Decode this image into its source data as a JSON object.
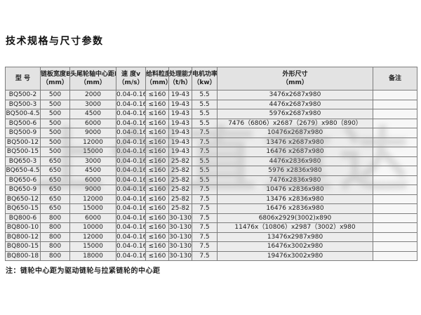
{
  "page": {
    "title": "技术规格与尺寸参数",
    "note": "注：链轮中心距为驱动链轮与拉紧链轮的中心距"
  },
  "watermark": {
    "glyphs": [
      "上",
      "创",
      "直",
      "重",
      "达"
    ]
  },
  "colors": {
    "cell_bg": "#ececec",
    "header_bg": "#e3e3e3",
    "border": "#7d7d7d",
    "page_bg": "#ffffff"
  },
  "table": {
    "column_keys": [
      "model",
      "plate-width",
      "center-distance",
      "speed",
      "feed-size",
      "capacity",
      "motor-power",
      "dimensions",
      "remark"
    ],
    "headers": [
      {
        "l1": "型 号",
        "l2": ""
      },
      {
        "l1": "链板宽度B",
        "l2": "（mm）"
      },
      {
        "l1": "头尾轮轴中心距L",
        "l2": "（mm）"
      },
      {
        "l1": "速 度v",
        "l2": "（m/s）"
      },
      {
        "l1": "给料粒度",
        "l2": "（mm）"
      },
      {
        "l1": "处理能力",
        "l2": "（t/h）"
      },
      {
        "l1": "电机功率",
        "l2": "（kw）"
      },
      {
        "l1": "外形尺寸",
        "l2": "（mm）"
      },
      {
        "l1": "备注",
        "l2": ""
      }
    ],
    "rows": [
      [
        "BQ500-2",
        "500",
        "2000",
        "0.04-0.16",
        "≤160",
        "19-43",
        "5.5",
        "3476x2687x980",
        ""
      ],
      [
        "BQ500-3",
        "500",
        "3000",
        "0.04-0.16",
        "≤160",
        "19-43",
        "5.5",
        "4476x2687x980",
        ""
      ],
      [
        "BQ500-4.5",
        "500",
        "4500",
        "0.04-0.16",
        "≤160",
        "19-43",
        "5.5",
        "5976x2687x980",
        ""
      ],
      [
        "BQ500-6",
        "500",
        "6000",
        "0.04-0.16",
        "≤160",
        "19-43",
        "5.5",
        "7476（6806）x2687（2679）x980（890）",
        ""
      ],
      [
        "BQ500-9",
        "500",
        "9000",
        "0.04-0.16",
        "≤160",
        "19-43",
        "7.5",
        "10476x2687x980",
        ""
      ],
      [
        "BQ500-12",
        "500",
        "12000",
        "0.04-0.16",
        "≤160",
        "19-43",
        "7.5",
        "13476 x2687x980",
        ""
      ],
      [
        "BQ500-15",
        "500",
        "15000",
        "0.04-0.16",
        "≤160",
        "19-43",
        "7.5",
        "16476 x2687x980",
        ""
      ],
      [
        "BQ650-3",
        "650",
        "3000",
        "0.04-0.16",
        "≤160",
        "25-82",
        "5.5",
        "4476x2836x980",
        ""
      ],
      [
        "BQ650-4.5",
        "650",
        "4500",
        "0.04-0.16",
        "≤160",
        "25-82",
        "5.5",
        "5976 x2836x980",
        ""
      ],
      [
        "BQ650-6",
        "650",
        "6000",
        "0.04-0.16",
        "≤160",
        "25-82",
        "5.5",
        "7476x2836x980",
        ""
      ],
      [
        "BQ650-9",
        "650",
        "9000",
        "0.04-0.16",
        "≤160",
        "25-82",
        "7.5",
        "10476 x2836x980",
        ""
      ],
      [
        "BQ650-12",
        "650",
        "12000",
        "0.04-0.16",
        "≤160",
        "25-82",
        "7.5",
        "13476 x2836x980",
        ""
      ],
      [
        "BQ650-15",
        "650",
        "15000",
        "0.04-0.16",
        "≤160",
        "25-82",
        "7.5",
        "16476 x2836x980",
        ""
      ],
      [
        "BQ800-6",
        "800",
        "6000",
        "0.04-0.16",
        "≤160",
        "30-130",
        "7.5",
        "6806x2929(3002)x890",
        ""
      ],
      [
        "BQ800-10",
        "800",
        "10000",
        "0.04-0.16",
        "≤160",
        "30-130",
        "7.5",
        "11476x（10806）x2987（3002）x980",
        ""
      ],
      [
        "BQ800-12",
        "800",
        "12000",
        "0.04-0.16",
        "≤160",
        "30-130",
        "7.5",
        "13476x2987x980",
        ""
      ],
      [
        "BQ800-15",
        "800",
        "15000",
        "0.04-0.16",
        "≤160",
        "30-130",
        "7.5",
        "16476x3002x980",
        ""
      ],
      [
        "BQ800-18",
        "800",
        "18000",
        "0.04-0.16",
        "≤160",
        "30-130",
        "7.5",
        "19476x3002x980",
        ""
      ]
    ]
  }
}
